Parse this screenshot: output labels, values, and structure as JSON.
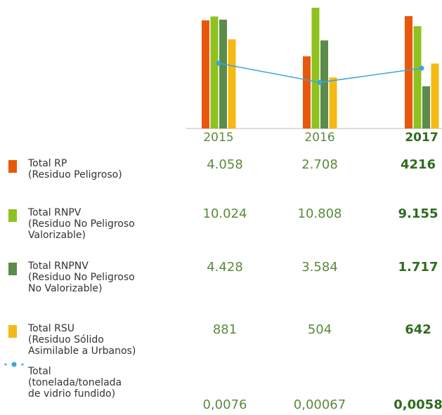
{
  "chart_data": {
    "type": "bar",
    "categories": [
      "2015",
      "2016",
      "2017"
    ],
    "series": [
      {
        "name": "Total RP",
        "description": [
          "(Residuo Peligroso)"
        ],
        "color": "#e8580c",
        "values": [
          4058,
          2708,
          4216
        ],
        "value_labels": [
          "4.058",
          "2.708",
          "4216"
        ]
      },
      {
        "name": "Total RNPV",
        "description": [
          "(Residuo No Peligroso",
          "Valorizable)"
        ],
        "color": "#8dc21f",
        "values": [
          10024,
          10808,
          9155
        ],
        "value_labels": [
          "10.024",
          "10.808",
          "9.155"
        ]
      },
      {
        "name": "Total RNPNV",
        "description": [
          "(Residuo No Peligroso",
          "No Valorizable)"
        ],
        "color": "#5b8c4c",
        "values": [
          4428,
          3584,
          1717
        ],
        "value_labels": [
          "4.428",
          "3.584",
          "1.717"
        ]
      },
      {
        "name": "Total RSU",
        "description": [
          "(Residuo Sólido",
          "Asimilable a Urbanos)"
        ],
        "color": "#f5b914",
        "values": [
          881,
          504,
          642
        ],
        "value_labels": [
          "881",
          "504",
          "642"
        ]
      },
      {
        "name": "Total",
        "description": [
          "(tonelada/tonelada",
          "de vidrio fundido)"
        ],
        "type": "line",
        "color": "#3ba5dc",
        "values": [
          0.0076,
          0.00067,
          0.0058
        ],
        "value_labels": [
          "0,0076",
          "0,00067",
          "0,0058"
        ]
      }
    ]
  }
}
